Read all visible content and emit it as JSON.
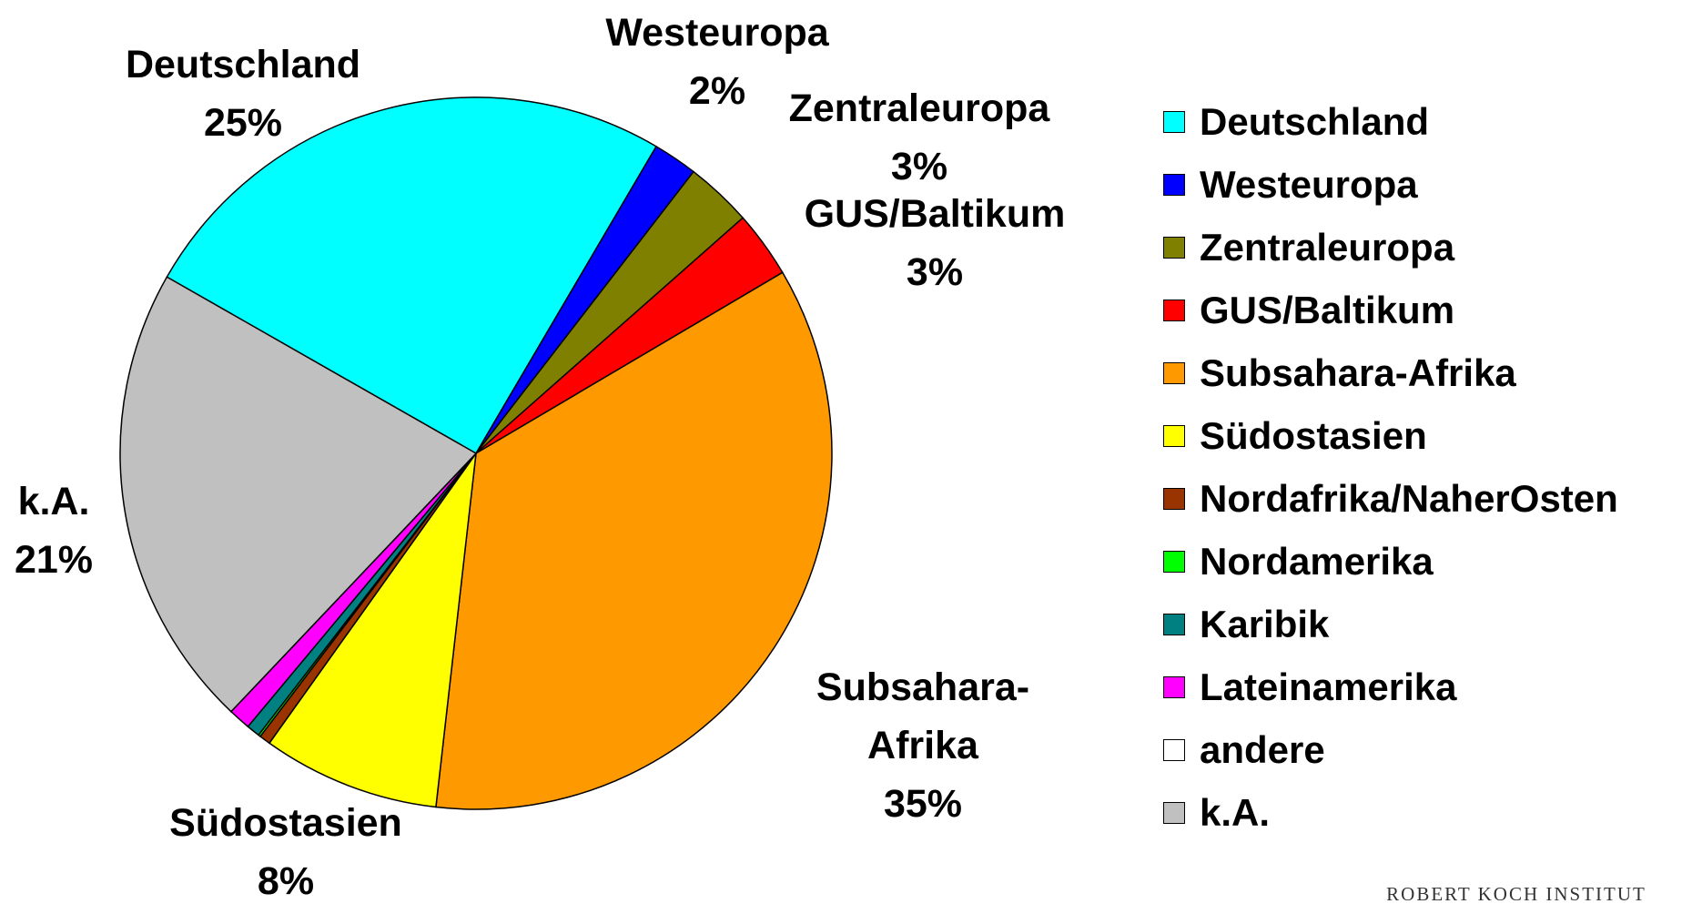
{
  "chart_data": {
    "type": "pie",
    "categories": [
      "Deutschland",
      "Westeuropa",
      "Zentraleuropa",
      "GUS/Baltikum",
      "Subsahara-Afrika",
      "Südostasien",
      "Nordafrika/NaherOsten",
      "Nordamerika",
      "Karibik",
      "Lateinamerika",
      "andere",
      "k.A."
    ],
    "values": [
      25,
      2,
      3,
      3,
      35,
      8,
      0.5,
      0.1,
      0.6,
      1,
      0,
      21
    ],
    "value_labels": [
      "25%",
      "2%",
      "3%",
      "3%",
      "35%",
      "8%",
      null,
      null,
      null,
      null,
      null,
      "21%"
    ],
    "colors": [
      "#00FFFF",
      "#0000FF",
      "#808000",
      "#FF0000",
      "#FF9900",
      "#FFFF00",
      "#993300",
      "#00FF00",
      "#008080",
      "#FF00FF",
      "#FFFFFF",
      "#C0C0C0"
    ],
    "legend": "right"
  },
  "footer": "ROBERT KOCH INSTITUT"
}
